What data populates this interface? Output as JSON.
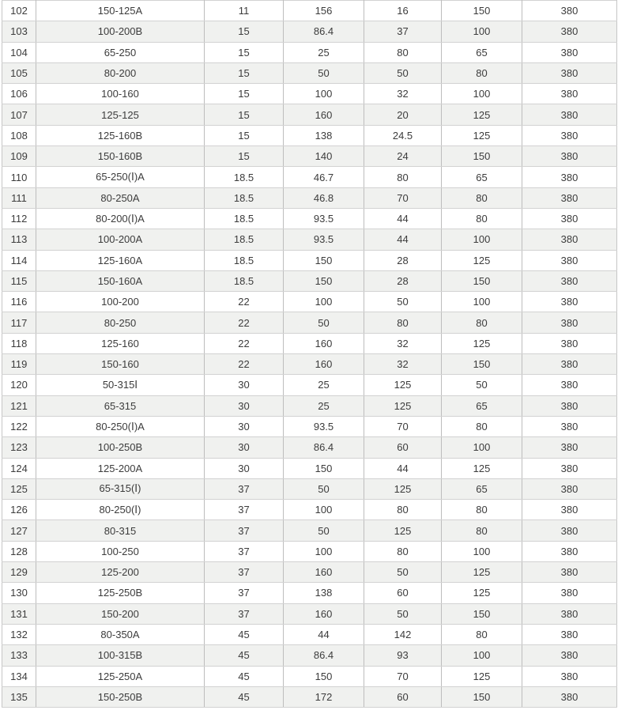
{
  "colors": {
    "row_alt_background": "#f0f1ef",
    "row_background": "#ffffff",
    "border_horizontal": "#d2d2d2",
    "border_vertical": "#bdbdbd",
    "text": "#3c3c3c"
  },
  "chart_data": {
    "type": "table",
    "title": "",
    "grid": true,
    "rows": [
      [
        "102",
        "150-125A",
        "11",
        "156",
        "16",
        "150",
        "380"
      ],
      [
        "103",
        "100-200B",
        "15",
        "86.4",
        "37",
        "100",
        "380"
      ],
      [
        "104",
        "65-250",
        "15",
        "25",
        "80",
        "65",
        "380"
      ],
      [
        "105",
        "80-200",
        "15",
        "50",
        "50",
        "80",
        "380"
      ],
      [
        "106",
        "100-160",
        "15",
        "100",
        "32",
        "100",
        "380"
      ],
      [
        "107",
        "125-125",
        "15",
        "160",
        "20",
        "125",
        "380"
      ],
      [
        "108",
        "125-160B",
        "15",
        "138",
        "24.5",
        "125",
        "380"
      ],
      [
        "109",
        "150-160B",
        "15",
        "140",
        "24",
        "150",
        "380"
      ],
      [
        "110",
        "65-250(Ⅰ)A",
        "18.5",
        "46.7",
        "80",
        "65",
        "380"
      ],
      [
        "111",
        "80-250A",
        "18.5",
        "46.8",
        "70",
        "80",
        "380"
      ],
      [
        "112",
        "80-200(Ⅰ)A",
        "18.5",
        "93.5",
        "44",
        "80",
        "380"
      ],
      [
        "113",
        "100-200A",
        "18.5",
        "93.5",
        "44",
        "100",
        "380"
      ],
      [
        "114",
        "125-160A",
        "18.5",
        "150",
        "28",
        "125",
        "380"
      ],
      [
        "115",
        "150-160A",
        "18.5",
        "150",
        "28",
        "150",
        "380"
      ],
      [
        "116",
        "100-200",
        "22",
        "100",
        "50",
        "100",
        "380"
      ],
      [
        "117",
        "80-250",
        "22",
        "50",
        "80",
        "80",
        "380"
      ],
      [
        "118",
        "125-160",
        "22",
        "160",
        "32",
        "125",
        "380"
      ],
      [
        "119",
        "150-160",
        "22",
        "160",
        "32",
        "150",
        "380"
      ],
      [
        "120",
        "50-315Ⅰ",
        "30",
        "25",
        "125",
        "50",
        "380"
      ],
      [
        "121",
        "65-315",
        "30",
        "25",
        "125",
        "65",
        "380"
      ],
      [
        "122",
        "80-250(Ⅰ)A",
        "30",
        "93.5",
        "70",
        "80",
        "380"
      ],
      [
        "123",
        "100-250B",
        "30",
        "86.4",
        "60",
        "100",
        "380"
      ],
      [
        "124",
        "125-200A",
        "30",
        "150",
        "44",
        "125",
        "380"
      ],
      [
        "125",
        "65-315(Ⅰ)",
        "37",
        "50",
        "125",
        "65",
        "380"
      ],
      [
        "126",
        "80-250(Ⅰ)",
        "37",
        "100",
        "80",
        "80",
        "380"
      ],
      [
        "127",
        "80-315",
        "37",
        "50",
        "125",
        "80",
        "380"
      ],
      [
        "128",
        "100-250",
        "37",
        "100",
        "80",
        "100",
        "380"
      ],
      [
        "129",
        "125-200",
        "37",
        "160",
        "50",
        "125",
        "380"
      ],
      [
        "130",
        "125-250B",
        "37",
        "138",
        "60",
        "125",
        "380"
      ],
      [
        "131",
        "150-200",
        "37",
        "160",
        "50",
        "150",
        "380"
      ],
      [
        "132",
        "80-350A",
        "45",
        "44",
        "142",
        "80",
        "380"
      ],
      [
        "133",
        "100-315B",
        "45",
        "86.4",
        "93",
        "100",
        "380"
      ],
      [
        "134",
        "125-250A",
        "45",
        "150",
        "70",
        "125",
        "380"
      ],
      [
        "135",
        "150-250B",
        "45",
        "172",
        "60",
        "150",
        "380"
      ]
    ]
  }
}
